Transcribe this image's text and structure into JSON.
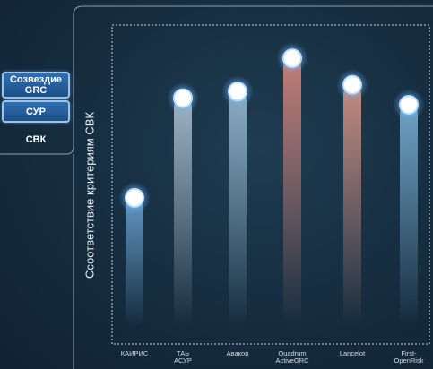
{
  "tabs": [
    {
      "label": "Созвездие\nGRC",
      "state": "inactive"
    },
    {
      "label": "СУР",
      "state": "inactive"
    },
    {
      "label": "СВК",
      "state": "active"
    }
  ],
  "chart_data": {
    "type": "scatter",
    "ylabel": "Ссоответствие критериям СВК",
    "categories": [
      "КАИРИС",
      "ТАЬ\nАСУР",
      "Авакор",
      "Quadrum\nActiveGRC",
      "Lancelot",
      "First-\nOpenRisk"
    ],
    "values": [
      2.2,
      3.7,
      3.8,
      4.3,
      3.9,
      3.6
    ],
    "ylim": [
      0,
      4.8
    ],
    "beam_colors": [
      "#6fa9d8",
      "#b6c9d8",
      "#9fc2d9",
      "#e08a7e",
      "#e39a8a",
      "#7fb7dc"
    ],
    "grid": false
  }
}
